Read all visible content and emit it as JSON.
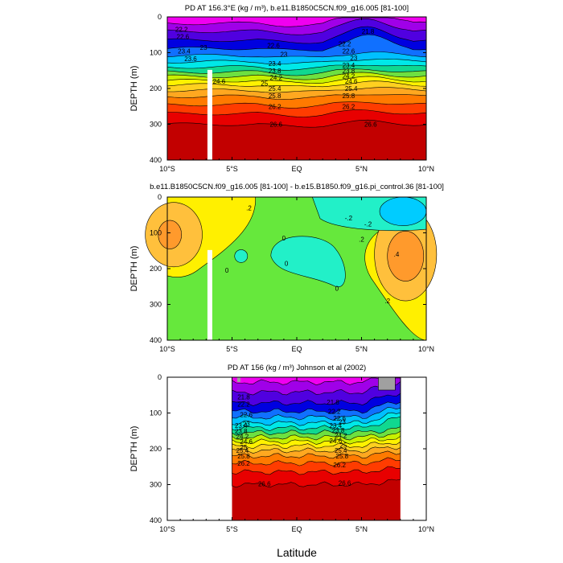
{
  "figure": {
    "xlabel": "Latitude",
    "colors": {
      "ramp": [
        "#c20000",
        "#e80000",
        "#ff3c00",
        "#ff7a00",
        "#ffa820",
        "#ffd020",
        "#fff200",
        "#c8f000",
        "#6ee040",
        "#10d890",
        "#00e8e8",
        "#00c0ff",
        "#1070ff",
        "#0000e0",
        "#5000e0",
        "#a000e8",
        "#f000f0"
      ],
      "diff_ramp": [
        "#ff9a2c",
        "#ffc03c",
        "#fff000",
        "#66e83c",
        "#22f0c8",
        "#00ccff",
        "#33a0f0"
      ],
      "mask": "#ffffff",
      "land": "#a0a0a0"
    }
  },
  "chart_data": [
    {
      "type": "heatmap",
      "title": "PD AT 156.3°E (kg / m³), b.e11.B1850C5CN.f09_g16.005 [81-100]",
      "ylabel": "DEPTH (m)",
      "x_ticks": [
        "10°S",
        "5°S",
        "EQ",
        "5°N",
        "10°N"
      ],
      "y_ticks": [
        "0",
        "100",
        "200",
        "300",
        "400"
      ],
      "xlim": [
        -10,
        10
      ],
      "ylim": [
        400,
        0
      ],
      "contour_labels": [
        {
          "text": "22.2",
          "x": -8.9,
          "y": 35
        },
        {
          "text": "22.6",
          "x": -8.8,
          "y": 55
        },
        {
          "text": "23",
          "x": -7.2,
          "y": 85
        },
        {
          "text": "23.4",
          "x": -8.7,
          "y": 95
        },
        {
          "text": "23.6",
          "x": -8.2,
          "y": 117
        },
        {
          "text": "24.6",
          "x": -6.0,
          "y": 180
        },
        {
          "text": "25",
          "x": -2.5,
          "y": 185
        },
        {
          "text": "21.8",
          "x": 5.5,
          "y": 40
        },
        {
          "text": "22.6",
          "x": -1.8,
          "y": 80
        },
        {
          "text": "23",
          "x": -1.0,
          "y": 105
        },
        {
          "text": "23.4",
          "x": -1.7,
          "y": 130
        },
        {
          "text": "23.8",
          "x": -1.7,
          "y": 150
        },
        {
          "text": "24.2",
          "x": -1.6,
          "y": 170
        },
        {
          "text": "25.4",
          "x": -1.7,
          "y": 200
        },
        {
          "text": "25.8",
          "x": -1.7,
          "y": 220
        },
        {
          "text": "26.2",
          "x": -1.7,
          "y": 250
        },
        {
          "text": "26.6",
          "x": -1.6,
          "y": 300
        },
        {
          "text": "22.2",
          "x": 3.7,
          "y": 75
        },
        {
          "text": "22.6",
          "x": 4.0,
          "y": 95
        },
        {
          "text": "23",
          "x": 4.4,
          "y": 115
        },
        {
          "text": "23.4",
          "x": 4.0,
          "y": 135
        },
        {
          "text": "23.8",
          "x": 4.0,
          "y": 150
        },
        {
          "text": "24.2",
          "x": 4.0,
          "y": 165
        },
        {
          "text": "24.6",
          "x": 4.2,
          "y": 180
        },
        {
          "text": "25.4",
          "x": 4.2,
          "y": 200
        },
        {
          "text": "25.8",
          "x": 4.0,
          "y": 220
        },
        {
          "text": "26.2",
          "x": 4.0,
          "y": 250
        },
        {
          "text": "26.6",
          "x": 5.7,
          "y": 300
        }
      ]
    },
    {
      "type": "heatmap",
      "title": "b.e11.B1850C5CN.f09_g16.005 [81-100] - b.e15.B1850.f09_g16.pi_control.36 [81-100]",
      "ylabel": "DEPTH (m)",
      "x_ticks": [
        "10°S",
        "5°S",
        "EQ",
        "5°N",
        "10°N"
      ],
      "y_ticks": [
        "0",
        "100",
        "200",
        "300",
        "400"
      ],
      "xlim": [
        -10,
        10
      ],
      "ylim": [
        400,
        0
      ],
      "contour_labels": [
        {
          "text": ".2",
          "x": -3.7,
          "y": 30
        },
        {
          "text": "-.2",
          "x": 4.0,
          "y": 58
        },
        {
          "text": "-.2",
          "x": 5.5,
          "y": 75
        },
        {
          "text": "0",
          "x": -1.0,
          "y": 115
        },
        {
          "text": ".2",
          "x": 5.0,
          "y": 118
        },
        {
          "text": ".4",
          "x": 7.7,
          "y": 160
        },
        {
          "text": "0",
          "x": -0.8,
          "y": 185
        },
        {
          "text": "0",
          "x": -5.4,
          "y": 205
        },
        {
          "text": "0",
          "x": 3.1,
          "y": 255
        },
        {
          "text": ".2",
          "x": 7.0,
          "y": 290
        }
      ]
    },
    {
      "type": "heatmap",
      "title": "PD AT 156 (kg / m³) Johnson et al (2002)",
      "ylabel": "DEPTH (m)",
      "x_ticks": [
        "10°S",
        "5°S",
        "EQ",
        "5°N",
        "10°N"
      ],
      "y_ticks": [
        "0",
        "100",
        "200",
        "300",
        "400"
      ],
      "xlim": [
        -10,
        10
      ],
      "ylim": [
        400,
        0
      ],
      "data_xrange": [
        -5,
        8
      ],
      "contour_labels": [
        {
          "text": "21.8",
          "x": -4.1,
          "y": 55
        },
        {
          "text": "22.2",
          "x": -4.1,
          "y": 75
        },
        {
          "text": "22.6",
          "x": -3.9,
          "y": 105
        },
        {
          "text": "23",
          "x": -3.9,
          "y": 130
        },
        {
          "text": "23.4",
          "x": -4.3,
          "y": 135
        },
        {
          "text": "23.8",
          "x": -4.3,
          "y": 150
        },
        {
          "text": "24.2",
          "x": -4.2,
          "y": 165
        },
        {
          "text": "24.6",
          "x": -3.9,
          "y": 180
        },
        {
          "text": "25",
          "x": -4.1,
          "y": 195
        },
        {
          "text": "25.4",
          "x": -4.2,
          "y": 205
        },
        {
          "text": "25.8",
          "x": -4.1,
          "y": 220
        },
        {
          "text": "26.2",
          "x": -4.1,
          "y": 240
        },
        {
          "text": "26.6",
          "x": -2.5,
          "y": 298
        },
        {
          "text": "21.8",
          "x": 2.8,
          "y": 70
        },
        {
          "text": "22.2",
          "x": 2.9,
          "y": 95
        },
        {
          "text": "22.6",
          "x": 3.3,
          "y": 115
        },
        {
          "text": "23",
          "x": 3.5,
          "y": 125
        },
        {
          "text": "23.4",
          "x": 3.0,
          "y": 135
        },
        {
          "text": "23.8",
          "x": 3.2,
          "y": 148
        },
        {
          "text": "24.2",
          "x": 3.4,
          "y": 163
        },
        {
          "text": "24.6",
          "x": 3.0,
          "y": 178
        },
        {
          "text": "25",
          "x": 3.6,
          "y": 190
        },
        {
          "text": "25.4",
          "x": 3.4,
          "y": 205
        },
        {
          "text": "25.8",
          "x": 3.5,
          "y": 220
        },
        {
          "text": "26.2",
          "x": 3.3,
          "y": 245
        },
        {
          "text": "26.6",
          "x": 3.7,
          "y": 295
        }
      ]
    }
  ]
}
